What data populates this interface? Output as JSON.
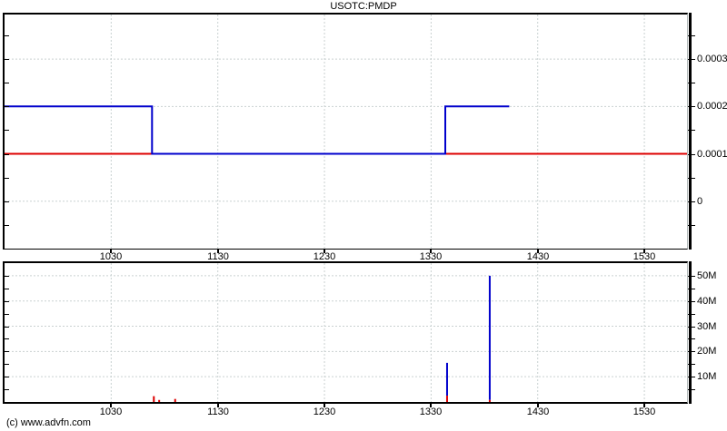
{
  "title": "USOTC:PMDP",
  "copyright": "(c) www.advfn.com",
  "colors": {
    "price_line": "#0000cc",
    "reference_line": "#dd0000",
    "volume_up": "#0000cc",
    "volume_down": "#dd0000",
    "grid": "#c9d1d1",
    "axis": "#000000",
    "text": "#000000"
  },
  "x_axis": {
    "unit": "time HHMM",
    "xlim_minutes": [
      570,
      954
    ],
    "ticks": [
      {
        "t": 630,
        "label": "1030"
      },
      {
        "t": 690,
        "label": "1130"
      },
      {
        "t": 750,
        "label": "1230"
      },
      {
        "t": 810,
        "label": "1330"
      },
      {
        "t": 870,
        "label": "1430"
      },
      {
        "t": 930,
        "label": "1530"
      }
    ]
  },
  "chart_data": [
    {
      "type": "line",
      "name": "price",
      "symbol": "USOTC:PMDP",
      "ylim": [
        -0.0001,
        0.000394
      ],
      "y_minor_step": 5e-05,
      "y_ticks": [
        {
          "v": 0,
          "label": "0"
        },
        {
          "v": 0.0001,
          "label": "0.0001"
        },
        {
          "v": 0.0002,
          "label": "0.0002"
        },
        {
          "v": 0.0003,
          "label": "0.0003"
        }
      ],
      "reference_line_value": 0.0001,
      "series": [
        {
          "name": "price-step-line",
          "points": [
            [
              570,
              0.0002
            ],
            [
              653,
              0.0002
            ],
            [
              653,
              0.0001
            ],
            [
              818,
              0.0001
            ],
            [
              818,
              0.0002
            ],
            [
              854,
              0.0002
            ]
          ]
        }
      ]
    },
    {
      "type": "bar",
      "name": "volume",
      "ylim_millions": [
        0,
        55
      ],
      "y_minor_step": 5,
      "y_ticks": [
        {
          "v": 10,
          "label": "10M"
        },
        {
          "v": 20,
          "label": "20M"
        },
        {
          "v": 30,
          "label": "30M"
        },
        {
          "v": 40,
          "label": "40M"
        },
        {
          "v": 50,
          "label": "50M"
        }
      ],
      "bars": [
        {
          "t": 654,
          "total_millions": 2.3,
          "down_millions": 2.3
        },
        {
          "t": 657,
          "total_millions": 0.8,
          "down_millions": 0.8
        },
        {
          "t": 666,
          "total_millions": 1.2,
          "down_millions": 1.2
        },
        {
          "t": 819,
          "total_millions": 15.5,
          "down_millions": 2.5
        },
        {
          "t": 843,
          "total_millions": 50,
          "down_millions": 0.8
        }
      ]
    }
  ]
}
